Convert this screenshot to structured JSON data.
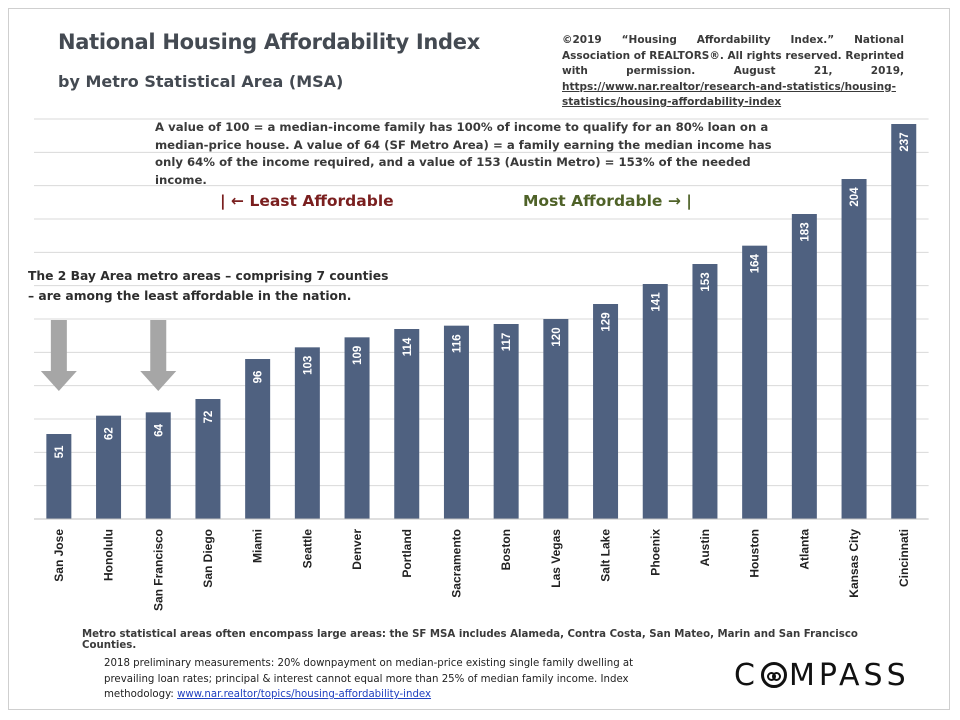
{
  "header": {
    "title": "National Housing Affordability Index",
    "subtitle": "by Metro Statistical Area (MSA)"
  },
  "credit": {
    "text": "©2019 “Housing Affordability Index.” National Association of REALTORS®. All rights reserved. Reprinted with permission. August 21, 2019,",
    "link": "https://www.nar.realtor/research-and-statistics/housing-statistics/housing-affordability-index"
  },
  "explanation": "A value of 100 = a median-income family has 100% of income to qualify for an 80% loan on a median-price house. A value of 64 (SF Metro Area) = a family earning the median income has only 64% of the income required, and a value of 153  (Austin Metro) = 153% of the needed income.",
  "least_label": "| ← Least Affordable",
  "most_label": "Most Affordable → |",
  "bay_note": "The 2 Bay Area metro areas – comprising 7 counties – are among the least affordable in the nation.",
  "msa_note": "Metro statistical areas often encompass large areas: the SF MSA includes Alameda, Contra Costa, San Mateo, Marin and San Francisco Counties.",
  "footnote": {
    "text": "2018 preliminary measurements: 20% downpayment  on median-price existing single family dwelling at prevailing loan rates; principal & interest cannot equal more than 25% of median family income. Index methodology:",
    "link": "www.nar.realtor/topics/housing-affordability-index"
  },
  "logo": {
    "pre": "C",
    "post": "MPASS"
  },
  "colors": {
    "bar": "#4f6180",
    "bar_label": "#ffffff",
    "arrow": "#a6a6a6",
    "gridline": "#d9d9d9"
  },
  "chart_data": {
    "type": "bar",
    "categories": [
      "San Jose",
      "Honolulu",
      "San Francisco",
      "San Diego",
      "Miami",
      "Seattle",
      "Denver",
      "Portland",
      "Sacramento",
      "Boston",
      "Las Vegas",
      "Salt Lake",
      "Phoenix",
      "Austin",
      "Houston",
      "Atlanta",
      "Kansas City",
      "Cincinnati"
    ],
    "values": [
      51,
      62,
      64,
      72,
      96,
      103,
      109,
      114,
      116,
      117,
      120,
      129,
      141,
      153,
      164,
      183,
      204,
      237
    ],
    "data_labels": true,
    "highlighted": [
      "San Jose",
      "San Francisco"
    ],
    "ylim": [
      0,
      240
    ],
    "grid": true
  }
}
